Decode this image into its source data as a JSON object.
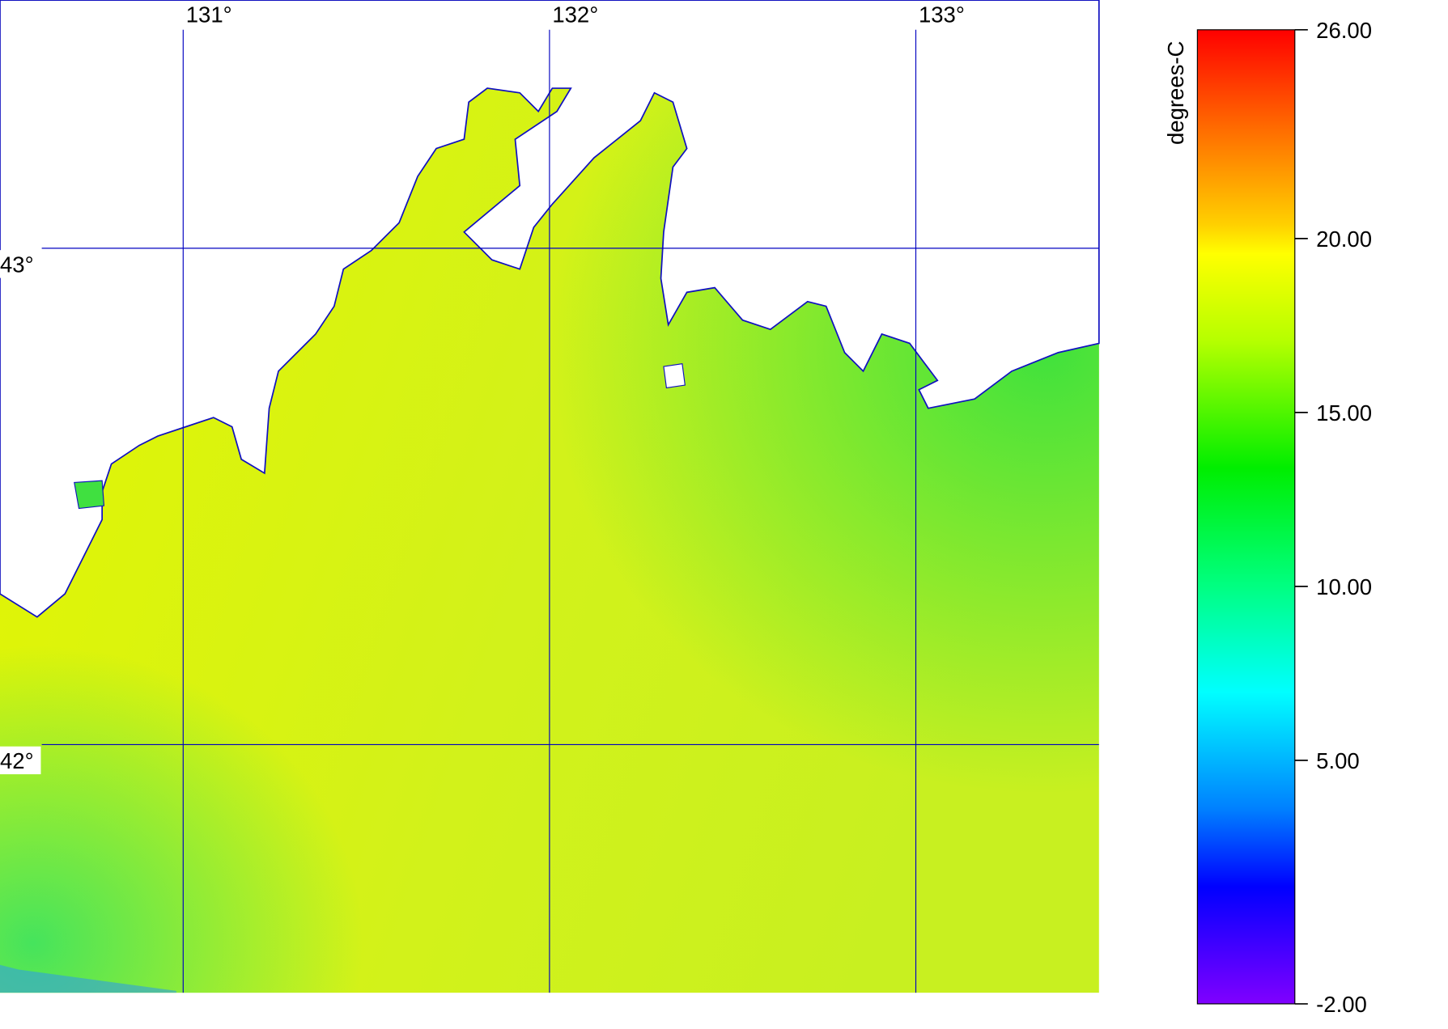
{
  "map": {
    "lon_ticks": [
      {
        "value": 131,
        "label": "131°"
      },
      {
        "value": 132,
        "label": "132°"
      },
      {
        "value": 133,
        "label": "133°"
      }
    ],
    "lat_ticks": [
      {
        "value": 43,
        "label": "43°"
      },
      {
        "value": 42,
        "label": "42°"
      }
    ],
    "xlim": [
      130.5,
      133.5
    ],
    "ylim": [
      41.5,
      43.5
    ]
  },
  "colorbar": {
    "label": "degrees-C",
    "range": [
      -2,
      26
    ],
    "ticks": [
      {
        "value": 26,
        "label": "26.00"
      },
      {
        "value": 20,
        "label": "20.00"
      },
      {
        "value": 15,
        "label": "15.00"
      },
      {
        "value": 10,
        "label": "10.00"
      },
      {
        "value": 5,
        "label": "5.00"
      },
      {
        "value": -2,
        "label": "-2.00"
      }
    ]
  }
}
